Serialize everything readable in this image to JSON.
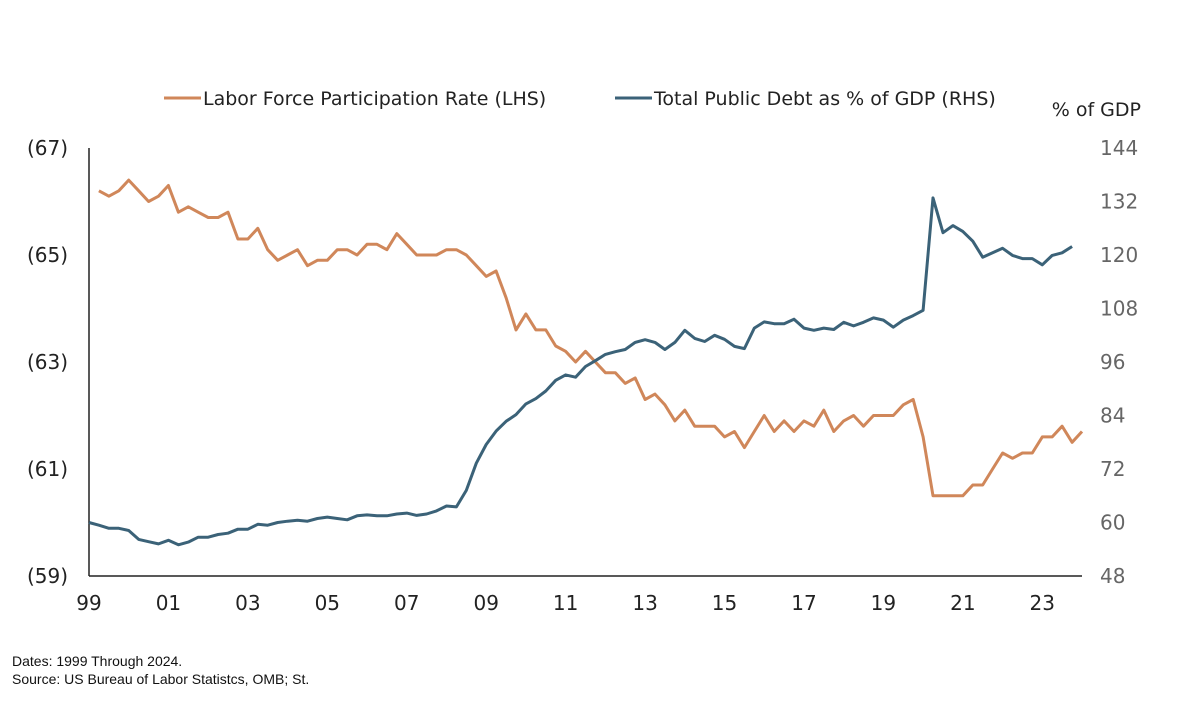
{
  "chart_data": {
    "type": "line",
    "legend": {
      "placement": "top-center"
    },
    "grid": false,
    "y_right_label": "% of GDP",
    "x_ticks": [
      1999,
      2001,
      2003,
      2005,
      2007,
      2009,
      2011,
      2013,
      2015,
      2017,
      2019,
      2021,
      2023
    ],
    "x_tick_labels": [
      "99",
      "01",
      "03",
      "05",
      "07",
      "09",
      "11",
      "13",
      "15",
      "17",
      "19",
      "21",
      "23"
    ],
    "xlim": [
      1999,
      2024
    ],
    "y_left": {
      "ylim": [
        59,
        67
      ],
      "ticks": [
        59,
        61,
        63,
        65,
        67
      ],
      "tick_labels": [
        "(59)",
        "(61)",
        "(63)",
        "(65)",
        "(67)"
      ]
    },
    "y_right": {
      "ylim": [
        48,
        144
      ],
      "ticks": [
        48,
        60,
        72,
        84,
        96,
        108,
        120,
        132,
        144
      ],
      "tick_labels": [
        "48",
        "60",
        "72",
        "84",
        "96",
        "108",
        "120",
        "132",
        "144"
      ]
    },
    "series": [
      {
        "name": "Labor Force Participation Rate (LHS)",
        "axis": "left",
        "color": "#d0875a",
        "points": [
          [
            1999.25,
            66.2
          ],
          [
            1999.5,
            66.1
          ],
          [
            1999.75,
            66.2
          ],
          [
            2000.0,
            66.4
          ],
          [
            2000.25,
            66.2
          ],
          [
            2000.5,
            66.0
          ],
          [
            2000.75,
            66.1
          ],
          [
            2001.0,
            66.3
          ],
          [
            2001.25,
            65.8
          ],
          [
            2001.5,
            65.9
          ],
          [
            2001.75,
            65.8
          ],
          [
            2002.0,
            65.7
          ],
          [
            2002.25,
            65.7
          ],
          [
            2002.5,
            65.8
          ],
          [
            2002.75,
            65.3
          ],
          [
            2003.0,
            65.3
          ],
          [
            2003.25,
            65.5
          ],
          [
            2003.5,
            65.1
          ],
          [
            2003.75,
            64.9
          ],
          [
            2004.0,
            65.0
          ],
          [
            2004.25,
            65.1
          ],
          [
            2004.5,
            64.8
          ],
          [
            2004.75,
            64.9
          ],
          [
            2005.0,
            64.9
          ],
          [
            2005.25,
            65.1
          ],
          [
            2005.5,
            65.1
          ],
          [
            2005.75,
            65.0
          ],
          [
            2006.0,
            65.2
          ],
          [
            2006.25,
            65.2
          ],
          [
            2006.5,
            65.1
          ],
          [
            2006.75,
            65.4
          ],
          [
            2007.0,
            65.2
          ],
          [
            2007.25,
            65.0
          ],
          [
            2007.5,
            65.0
          ],
          [
            2007.75,
            65.0
          ],
          [
            2008.0,
            65.1
          ],
          [
            2008.25,
            65.1
          ],
          [
            2008.5,
            65.0
          ],
          [
            2008.75,
            64.8
          ],
          [
            2009.0,
            64.6
          ],
          [
            2009.25,
            64.7
          ],
          [
            2009.5,
            64.2
          ],
          [
            2009.75,
            63.6
          ],
          [
            2010.0,
            63.9
          ],
          [
            2010.25,
            63.6
          ],
          [
            2010.5,
            63.6
          ],
          [
            2010.75,
            63.3
          ],
          [
            2011.0,
            63.2
          ],
          [
            2011.25,
            63.0
          ],
          [
            2011.5,
            63.2
          ],
          [
            2011.75,
            63.0
          ],
          [
            2012.0,
            62.8
          ],
          [
            2012.25,
            62.8
          ],
          [
            2012.5,
            62.6
          ],
          [
            2012.75,
            62.7
          ],
          [
            2013.0,
            62.3
          ],
          [
            2013.25,
            62.4
          ],
          [
            2013.5,
            62.2
          ],
          [
            2013.75,
            61.9
          ],
          [
            2014.0,
            62.1
          ],
          [
            2014.25,
            61.8
          ],
          [
            2014.5,
            61.8
          ],
          [
            2014.75,
            61.8
          ],
          [
            2015.0,
            61.6
          ],
          [
            2015.25,
            61.7
          ],
          [
            2015.5,
            61.4
          ],
          [
            2015.75,
            61.7
          ],
          [
            2016.0,
            62.0
          ],
          [
            2016.25,
            61.7
          ],
          [
            2016.5,
            61.9
          ],
          [
            2016.75,
            61.7
          ],
          [
            2017.0,
            61.9
          ],
          [
            2017.25,
            61.8
          ],
          [
            2017.5,
            62.1
          ],
          [
            2017.75,
            61.7
          ],
          [
            2018.0,
            61.9
          ],
          [
            2018.25,
            62.0
          ],
          [
            2018.5,
            61.8
          ],
          [
            2018.75,
            62.0
          ],
          [
            2019.0,
            62.0
          ],
          [
            2019.25,
            62.0
          ],
          [
            2019.5,
            62.2
          ],
          [
            2019.75,
            62.3
          ],
          [
            2020.0,
            61.6
          ],
          [
            2020.25,
            60.5
          ],
          [
            2020.5,
            60.5
          ],
          [
            2020.75,
            60.5
          ],
          [
            2021.0,
            60.5
          ],
          [
            2021.25,
            60.7
          ],
          [
            2021.5,
            60.7
          ],
          [
            2021.75,
            61.0
          ],
          [
            2022.0,
            61.3
          ],
          [
            2022.25,
            61.2
          ],
          [
            2022.5,
            61.3
          ],
          [
            2022.75,
            61.3
          ],
          [
            2023.0,
            61.6
          ],
          [
            2023.25,
            61.6
          ],
          [
            2023.5,
            61.8
          ],
          [
            2023.75,
            61.5
          ],
          [
            2024.0,
            61.7
          ]
        ]
      },
      {
        "name": "Total Public Debt as % of GDP (RHS)",
        "axis": "right",
        "color": "#3b6278",
        "points": [
          [
            1999.0,
            60.0
          ],
          [
            1999.25,
            59.4
          ],
          [
            1999.5,
            58.7
          ],
          [
            1999.75,
            58.7
          ],
          [
            2000.0,
            58.2
          ],
          [
            2000.25,
            56.2
          ],
          [
            2000.5,
            55.7
          ],
          [
            2000.75,
            55.2
          ],
          [
            2001.0,
            56.0
          ],
          [
            2001.25,
            55.0
          ],
          [
            2001.5,
            55.6
          ],
          [
            2001.75,
            56.7
          ],
          [
            2002.0,
            56.7
          ],
          [
            2002.25,
            57.3
          ],
          [
            2002.5,
            57.6
          ],
          [
            2002.75,
            58.5
          ],
          [
            2003.0,
            58.5
          ],
          [
            2003.25,
            59.6
          ],
          [
            2003.5,
            59.4
          ],
          [
            2003.75,
            60.0
          ],
          [
            2004.0,
            60.3
          ],
          [
            2004.25,
            60.5
          ],
          [
            2004.5,
            60.3
          ],
          [
            2004.75,
            60.9
          ],
          [
            2005.0,
            61.2
          ],
          [
            2005.25,
            60.9
          ],
          [
            2005.5,
            60.6
          ],
          [
            2005.75,
            61.5
          ],
          [
            2006.0,
            61.7
          ],
          [
            2006.25,
            61.5
          ],
          [
            2006.5,
            61.5
          ],
          [
            2006.75,
            61.9
          ],
          [
            2007.0,
            62.1
          ],
          [
            2007.25,
            61.6
          ],
          [
            2007.5,
            61.9
          ],
          [
            2007.75,
            62.6
          ],
          [
            2008.0,
            63.7
          ],
          [
            2008.25,
            63.5
          ],
          [
            2008.5,
            67.2
          ],
          [
            2008.75,
            73.3
          ],
          [
            2009.0,
            77.5
          ],
          [
            2009.25,
            80.5
          ],
          [
            2009.5,
            82.7
          ],
          [
            2009.75,
            84.2
          ],
          [
            2010.0,
            86.6
          ],
          [
            2010.25,
            87.8
          ],
          [
            2010.5,
            89.5
          ],
          [
            2010.75,
            91.9
          ],
          [
            2011.0,
            93.1
          ],
          [
            2011.25,
            92.6
          ],
          [
            2011.5,
            95.0
          ],
          [
            2011.75,
            96.3
          ],
          [
            2012.0,
            97.7
          ],
          [
            2012.25,
            98.3
          ],
          [
            2012.5,
            98.8
          ],
          [
            2012.75,
            100.4
          ],
          [
            2013.0,
            101.0
          ],
          [
            2013.25,
            100.4
          ],
          [
            2013.5,
            98.8
          ],
          [
            2013.75,
            100.4
          ],
          [
            2014.0,
            103.1
          ],
          [
            2014.25,
            101.3
          ],
          [
            2014.5,
            100.6
          ],
          [
            2014.75,
            102.0
          ],
          [
            2015.0,
            101.1
          ],
          [
            2015.25,
            99.5
          ],
          [
            2015.5,
            99.0
          ],
          [
            2015.75,
            103.6
          ],
          [
            2016.0,
            105.0
          ],
          [
            2016.25,
            104.6
          ],
          [
            2016.5,
            104.6
          ],
          [
            2016.75,
            105.6
          ],
          [
            2017.0,
            103.6
          ],
          [
            2017.25,
            103.1
          ],
          [
            2017.5,
            103.6
          ],
          [
            2017.75,
            103.3
          ],
          [
            2018.0,
            104.9
          ],
          [
            2018.25,
            104.1
          ],
          [
            2018.5,
            104.9
          ],
          [
            2018.75,
            105.9
          ],
          [
            2019.0,
            105.4
          ],
          [
            2019.25,
            103.8
          ],
          [
            2019.5,
            105.4
          ],
          [
            2019.75,
            106.4
          ],
          [
            2020.0,
            107.6
          ],
          [
            2020.25,
            132.8
          ],
          [
            2020.5,
            125.0
          ],
          [
            2020.75,
            126.6
          ],
          [
            2021.0,
            125.3
          ],
          [
            2021.25,
            123.1
          ],
          [
            2021.5,
            119.5
          ],
          [
            2021.75,
            120.5
          ],
          [
            2022.0,
            121.5
          ],
          [
            2022.25,
            119.9
          ],
          [
            2022.5,
            119.2
          ],
          [
            2022.75,
            119.2
          ],
          [
            2023.0,
            117.8
          ],
          [
            2023.25,
            119.9
          ],
          [
            2023.5,
            120.5
          ],
          [
            2023.75,
            121.9
          ]
        ]
      }
    ]
  },
  "footnotes": {
    "dates": "Dates: 1999 Through 2024.",
    "source": "Source: US Bureau of Labor Statistcs, OMB; St."
  }
}
